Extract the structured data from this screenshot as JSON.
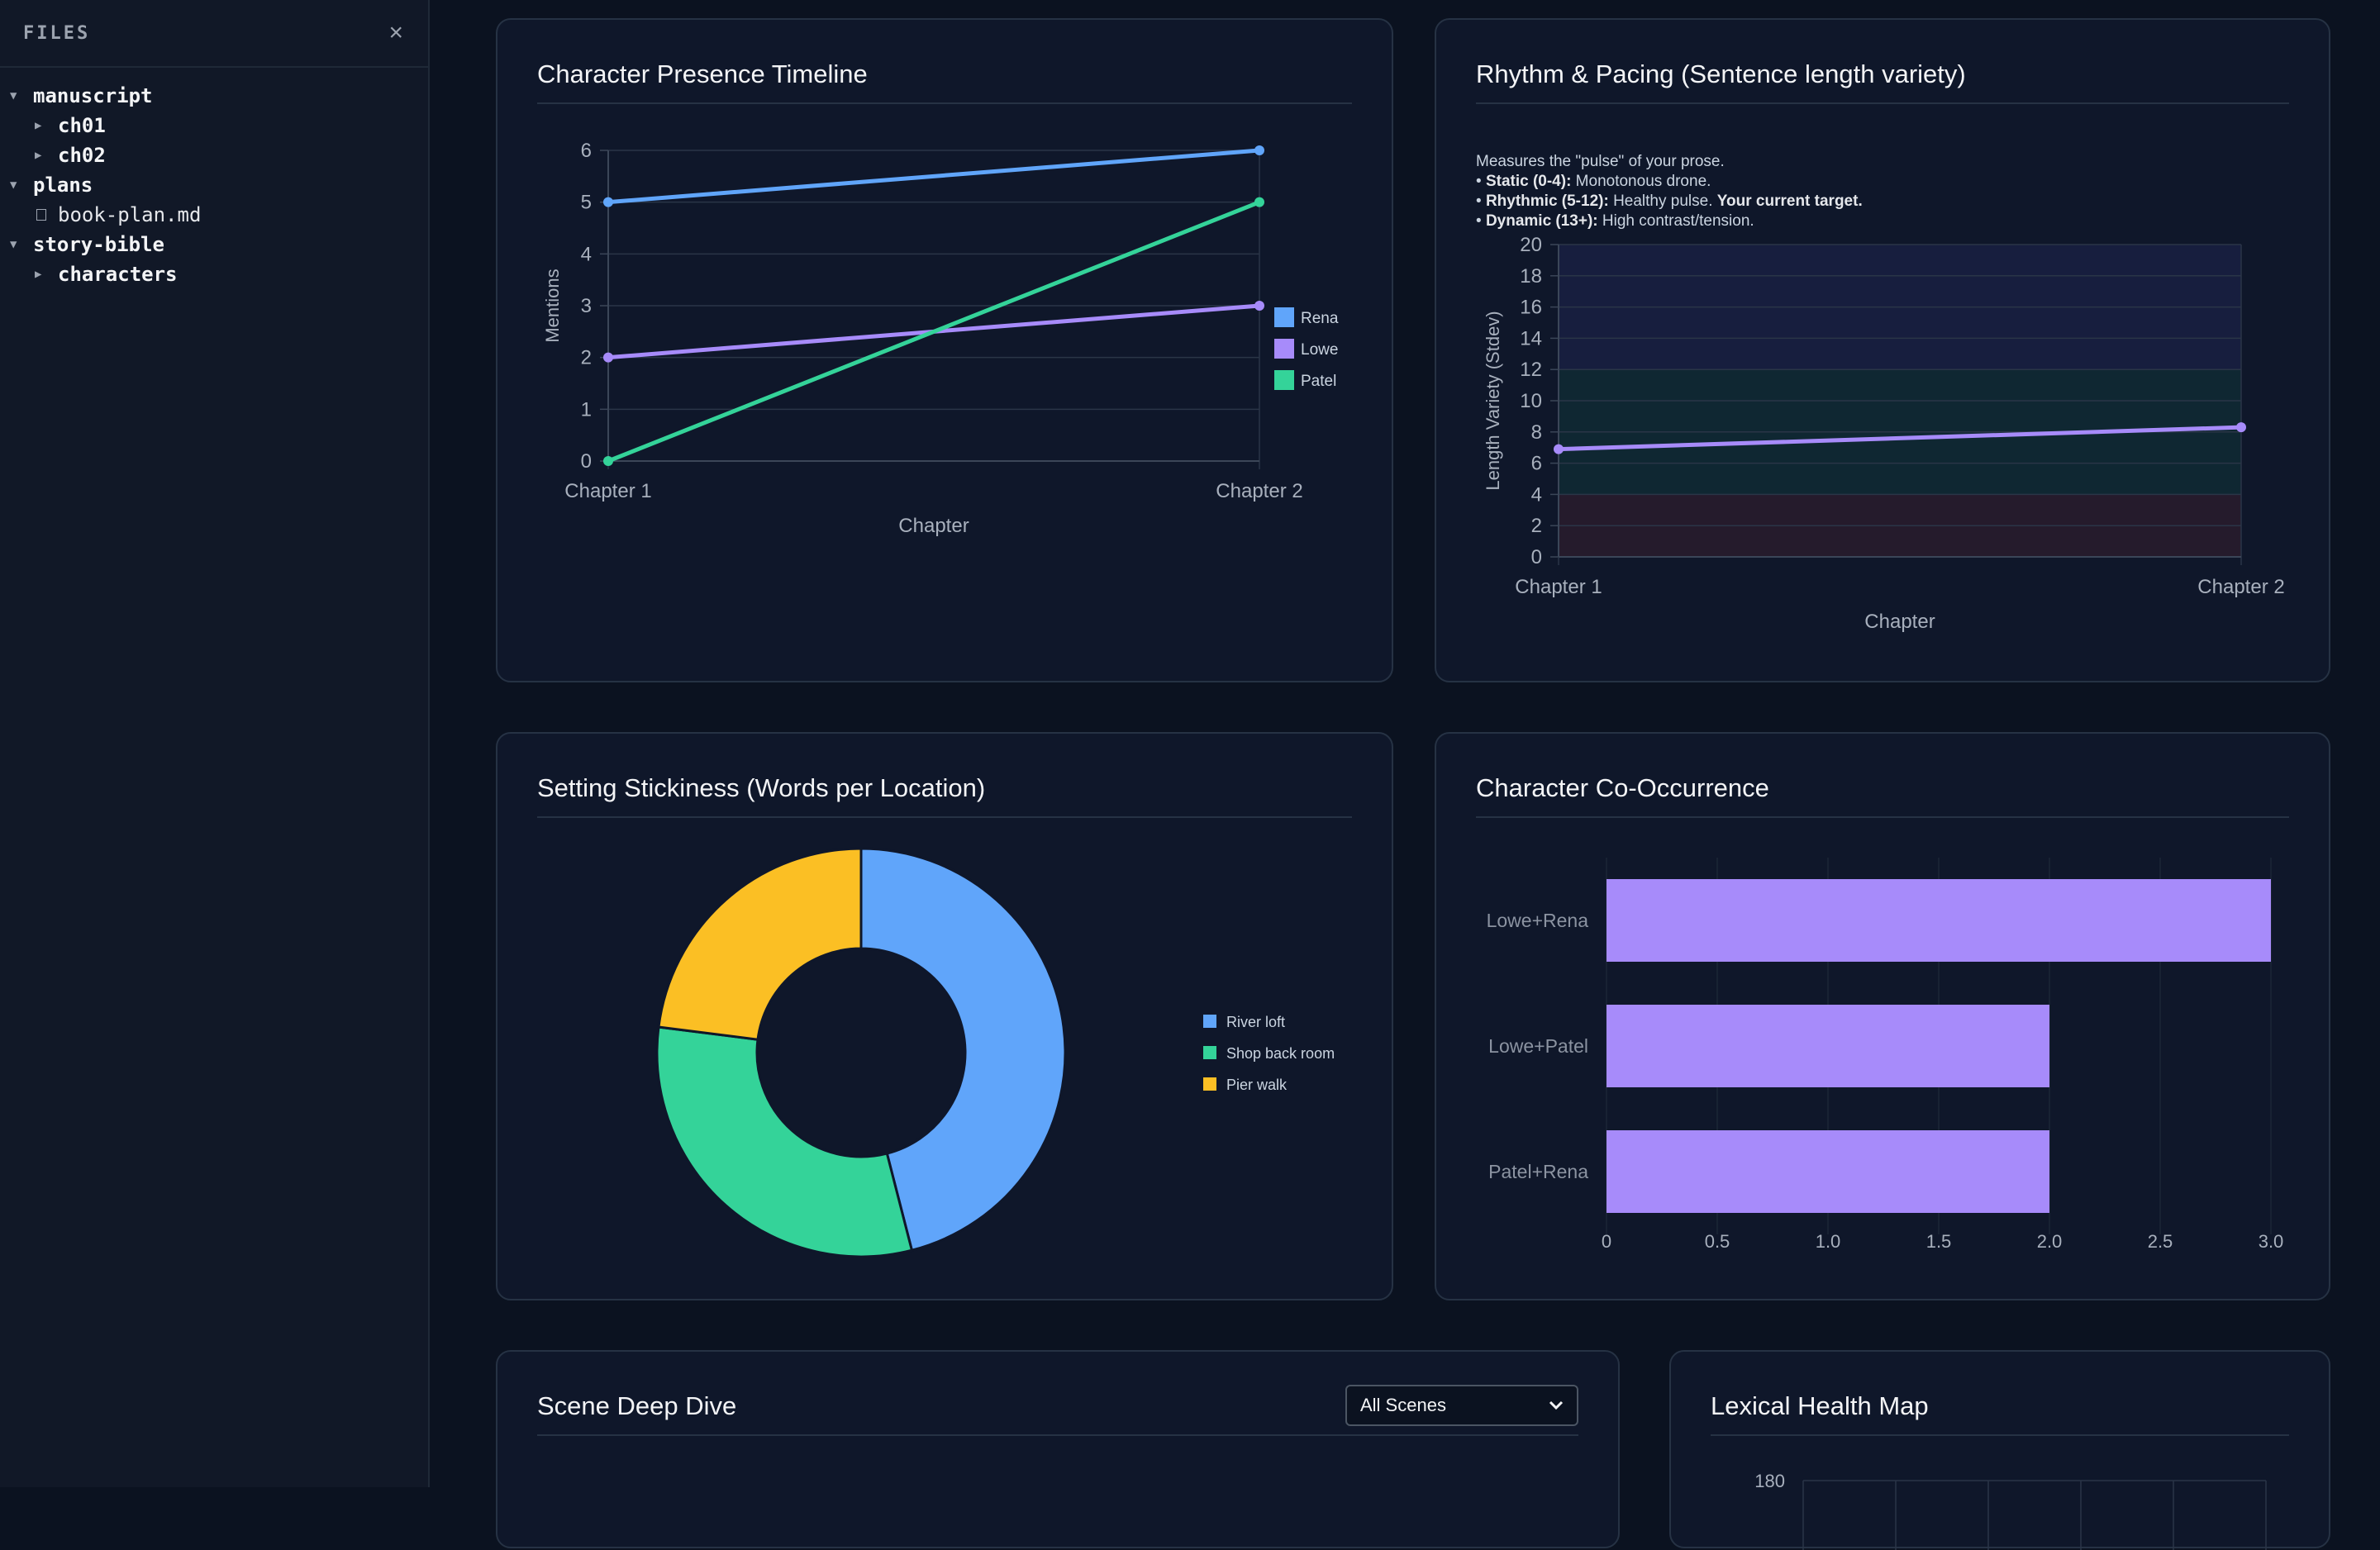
{
  "sidebar": {
    "title": "FILES",
    "close_icon": "×",
    "tree": [
      {
        "label": "manuscript",
        "type": "folder",
        "expanded": true,
        "level": 0
      },
      {
        "label": "ch01",
        "type": "folder",
        "expanded": false,
        "level": 1
      },
      {
        "label": "ch02",
        "type": "folder",
        "expanded": false,
        "level": 1
      },
      {
        "label": "plans",
        "type": "folder",
        "expanded": true,
        "level": 0
      },
      {
        "label": "book-plan.md",
        "type": "file",
        "level": 1
      },
      {
        "label": "story-bible",
        "type": "folder",
        "expanded": true,
        "level": 0
      },
      {
        "label": "characters",
        "type": "folder",
        "expanded": false,
        "level": 1
      }
    ]
  },
  "cards": {
    "presence": {
      "title": "Character Presence Timeline"
    },
    "rhythm": {
      "title": "Rhythm & Pacing (Sentence length variety)",
      "intro": "Measures the \"pulse\" of your prose.",
      "bullets": [
        {
          "bold": "Static (0-4):",
          "text": " Monotonous drone.",
          "extra_bold": ""
        },
        {
          "bold": "Rhythmic (5-12):",
          "text": " Healthy pulse. ",
          "extra_bold": "Your current target."
        },
        {
          "bold": "Dynamic (13+):",
          "text": " High contrast/tension.",
          "extra_bold": ""
        }
      ]
    },
    "setting": {
      "title": "Setting Stickiness (Words per Location)"
    },
    "cooccurrence": {
      "title": "Character Co-Occurrence"
    },
    "scene": {
      "title": "Scene Deep Dive",
      "select_value": "All Scenes"
    },
    "lexical": {
      "title": "Lexical Health Map"
    }
  },
  "chart_data": [
    {
      "id": "presence",
      "type": "line",
      "x": [
        "Chapter 1",
        "Chapter 2"
      ],
      "xlabel": "Chapter",
      "ylabel": "Mentions",
      "ylim": [
        0,
        6
      ],
      "yticks": [
        0,
        1,
        2,
        3,
        4,
        5,
        6
      ],
      "grid": true,
      "legend": "right",
      "series": [
        {
          "name": "Rena",
          "values": [
            5,
            6
          ],
          "color": "#60a5fa"
        },
        {
          "name": "Lowe",
          "values": [
            2,
            3
          ],
          "color": "#a78bfa"
        },
        {
          "name": "Patel",
          "values": [
            0,
            5
          ],
          "color": "#34d399"
        }
      ]
    },
    {
      "id": "rhythm",
      "type": "line",
      "x": [
        "Chapter 1",
        "Chapter 2"
      ],
      "xlabel": "Chapter",
      "ylabel": "Length Variety (Stdev)",
      "ylim": [
        0,
        20
      ],
      "yticks": [
        0,
        2,
        4,
        6,
        8,
        10,
        12,
        14,
        16,
        18,
        20
      ],
      "grid": true,
      "bands": [
        {
          "from": 0,
          "to": 4,
          "color": "#ef4444"
        },
        {
          "from": 4,
          "to": 12,
          "color": "#10b981"
        },
        {
          "from": 12,
          "to": 20,
          "color": "#6366f1"
        }
      ],
      "series": [
        {
          "name": "",
          "values": [
            6.9,
            8.3
          ],
          "color": "#a78bfa"
        }
      ]
    },
    {
      "id": "setting",
      "type": "pie",
      "donut": true,
      "legend": "right",
      "slices": [
        {
          "label": "River loft",
          "value": 46,
          "color": "#60a5fa"
        },
        {
          "label": "Shop back room",
          "value": 31,
          "color": "#34d399"
        },
        {
          "label": "Pier walk",
          "value": 23,
          "color": "#fbbf24"
        }
      ]
    },
    {
      "id": "cooccurrence",
      "type": "bar",
      "orientation": "horizontal",
      "categories": [
        "Lowe+Rena",
        "Lowe+Patel",
        "Patel+Rena"
      ],
      "values": [
        3,
        2,
        2
      ],
      "xlim": [
        0,
        3
      ],
      "xticks": [
        "0",
        "0.5",
        "1.0",
        "1.5",
        "2.0",
        "2.5",
        "3.0"
      ],
      "color": "#a78bfa"
    },
    {
      "id": "lexical",
      "type": "heatmap",
      "visible_yticks": [
        "180"
      ]
    }
  ]
}
